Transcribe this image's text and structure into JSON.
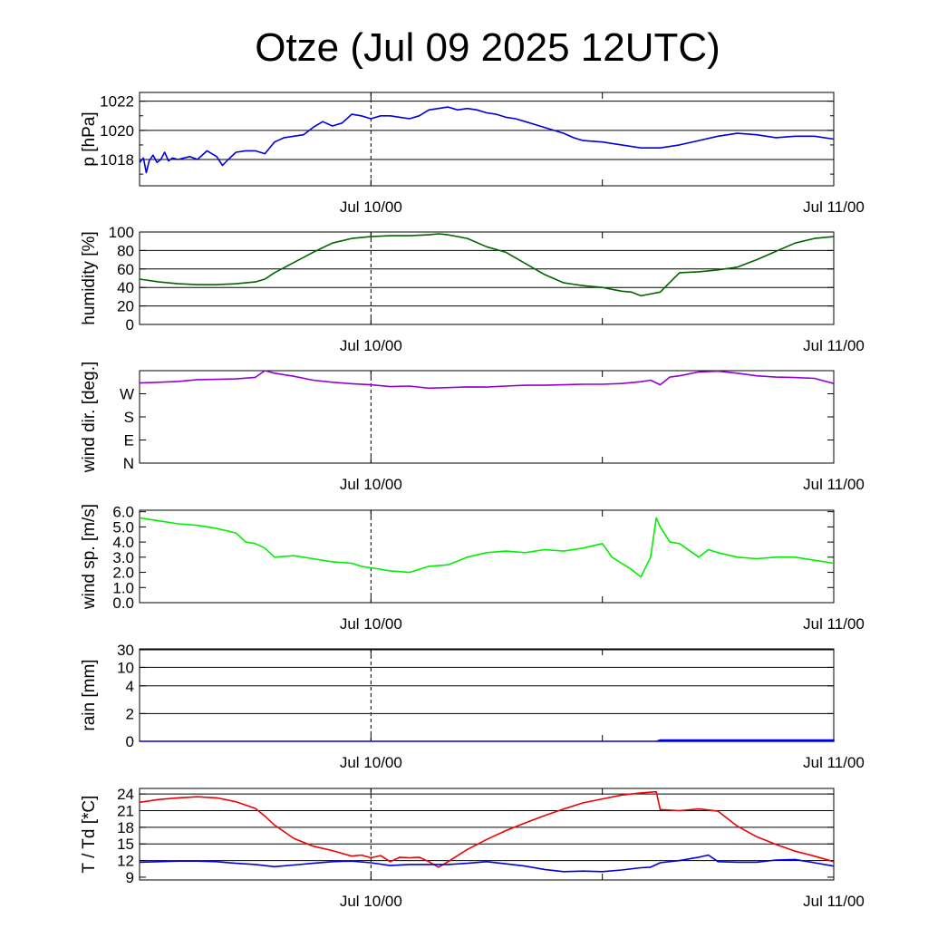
{
  "title": "Otze (Jul 09 2025 12UTC)",
  "x_tick_labels": [
    "Jul 10/00",
    "Jul 11/00"
  ],
  "chart_data": [
    {
      "id": "pressure",
      "type": "line",
      "ylabel": "p [hPa]",
      "ylim": [
        1016.2,
        1022.6
      ],
      "yticks": [
        1018,
        1020,
        1022
      ],
      "ytick_labels": [
        "1018",
        "1020",
        "1022"
      ],
      "grid": [
        1018,
        1020,
        1022
      ],
      "xlim": [
        0,
        36
      ],
      "series": [
        {
          "color": "#0000dd",
          "x": [
            0,
            0.2,
            0.35,
            0.5,
            0.7,
            0.9,
            1.1,
            1.3,
            1.5,
            1.7,
            2.0,
            2.3,
            2.6,
            3.0,
            3.5,
            4.0,
            4.3,
            4.6,
            5.0,
            5.5,
            6.0,
            6.5,
            7.0,
            7.5,
            8.0,
            8.5,
            9.0,
            9.5,
            10.0,
            10.5,
            11.0,
            11.5,
            12.0,
            12.5,
            13.0,
            13.5,
            14.0,
            14.5,
            15.0,
            15.5,
            16.0,
            16.5,
            17.0,
            17.5,
            18.0,
            18.5,
            19.0,
            19.5,
            20.0,
            21.0,
            22.0,
            22.5,
            23.0,
            24.0,
            25.0,
            26.0,
            27.0,
            28.0,
            29.0,
            30.0,
            31.0,
            32.0,
            33.0,
            34.0,
            35.0,
            36.0
          ],
          "y": [
            1017.8,
            1018.1,
            1017.1,
            1017.9,
            1018.3,
            1017.8,
            1018.0,
            1018.5,
            1017.9,
            1018.1,
            1018.0,
            1018.1,
            1018.2,
            1018.0,
            1018.6,
            1018.2,
            1017.6,
            1018.0,
            1018.5,
            1018.6,
            1018.6,
            1018.4,
            1019.2,
            1019.5,
            1019.6,
            1019.7,
            1020.2,
            1020.6,
            1020.3,
            1020.5,
            1021.1,
            1021.0,
            1020.8,
            1021.0,
            1021.0,
            1020.9,
            1020.8,
            1021.0,
            1021.4,
            1021.5,
            1021.6,
            1021.4,
            1021.5,
            1021.4,
            1021.2,
            1021.1,
            1020.9,
            1020.8,
            1020.6,
            1020.2,
            1019.8,
            1019.5,
            1019.3,
            1019.2,
            1019.0,
            1018.8,
            1018.8,
            1019.0,
            1019.3,
            1019.6,
            1019.8,
            1019.7,
            1019.5,
            1019.6,
            1019.6,
            1019.4
          ]
        }
      ]
    },
    {
      "id": "humidity",
      "type": "line",
      "ylabel": "humidity [%]",
      "ylim": [
        0,
        100
      ],
      "yticks": [
        0,
        20,
        40,
        60,
        80,
        100
      ],
      "ytick_labels": [
        "0",
        "20",
        "40",
        "60",
        "80",
        "100"
      ],
      "grid": [
        20,
        40,
        60,
        80
      ],
      "xlim": [
        0,
        36
      ],
      "series": [
        {
          "color": "#006400",
          "x": [
            0,
            1,
            2,
            3,
            4,
            5,
            6,
            6.5,
            7,
            8,
            9,
            10,
            11,
            11.5,
            12,
            13,
            14,
            15,
            15.5,
            16,
            17,
            18,
            19,
            20,
            21,
            22,
            23,
            24,
            25,
            25.5,
            26,
            27,
            28,
            29,
            30,
            31,
            32,
            33,
            34,
            35,
            36
          ],
          "y": [
            49,
            46,
            44,
            43,
            43,
            44,
            46,
            49,
            56,
            67,
            78,
            88,
            93,
            94,
            95,
            96,
            96,
            97,
            98,
            97,
            93,
            84,
            78,
            66,
            54,
            45,
            42,
            40,
            36,
            35,
            31,
            35,
            56,
            57,
            59,
            62,
            70,
            79,
            88,
            93,
            95
          ]
        }
      ]
    },
    {
      "id": "wind_direction",
      "type": "line",
      "ylabel": "wind dir. [deg.]",
      "ylim": [
        0,
        360
      ],
      "yticks": [
        0,
        90,
        180,
        270
      ],
      "ytick_labels": [
        "N",
        "E",
        "S",
        "W"
      ],
      "grid": [],
      "xlim": [
        0,
        36
      ],
      "series": [
        {
          "color": "#9400d3",
          "x": [
            0,
            1,
            2,
            3,
            4,
            5,
            6,
            6.5,
            7,
            8,
            9,
            10,
            11,
            12,
            13,
            14,
            15,
            16,
            17,
            18,
            19,
            20,
            21,
            22,
            23,
            24,
            25,
            26,
            26.5,
            27,
            27.5,
            28,
            29,
            30,
            31,
            32,
            33,
            34,
            35,
            36
          ],
          "y": [
            312,
            315,
            318,
            325,
            326,
            328,
            334,
            360,
            350,
            338,
            323,
            315,
            309,
            305,
            298,
            300,
            292,
            294,
            297,
            296,
            300,
            303,
            303,
            305,
            307,
            307,
            310,
            317,
            323,
            305,
            335,
            340,
            355,
            358,
            350,
            340,
            335,
            333,
            330,
            310
          ]
        }
      ]
    },
    {
      "id": "wind_speed",
      "type": "line",
      "ylabel": "wind sp. [m/s]",
      "ylim": [
        0,
        6.1
      ],
      "yticks": [
        0,
        1,
        2,
        3,
        4,
        5,
        6
      ],
      "ytick_labels": [
        "0.0",
        "1.0",
        "2.0",
        "3.0",
        "4.0",
        "5.0",
        "6.0"
      ],
      "grid": [],
      "xlim": [
        0,
        36
      ],
      "series": [
        {
          "color": "#00ee00",
          "x": [
            0,
            1,
            2,
            3,
            4,
            5,
            5.5,
            6,
            6.5,
            7,
            8,
            9,
            10,
            11,
            11.5,
            12,
            13,
            14,
            15,
            16,
            17,
            18,
            19,
            20,
            21,
            22,
            23,
            24,
            24.5,
            25,
            25.5,
            26,
            26.5,
            26.8,
            27,
            27.5,
            28,
            29,
            29.5,
            30,
            31,
            32,
            33,
            34,
            35,
            36
          ],
          "y": [
            5.6,
            5.4,
            5.2,
            5.1,
            4.9,
            4.6,
            4.0,
            3.9,
            3.6,
            3.0,
            3.1,
            2.9,
            2.7,
            2.6,
            2.4,
            2.3,
            2.1,
            2.0,
            2.4,
            2.5,
            3.0,
            3.3,
            3.4,
            3.3,
            3.5,
            3.4,
            3.6,
            3.9,
            3.0,
            2.6,
            2.2,
            1.7,
            3.0,
            5.6,
            5.0,
            4.0,
            3.9,
            3.0,
            3.5,
            3.3,
            3.0,
            2.9,
            3.0,
            3.0,
            2.8,
            2.6
          ]
        }
      ]
    },
    {
      "id": "rain",
      "type": "area",
      "ylabel": "rain [mm]",
      "ylim": [
        0,
        30
      ],
      "yticks": [
        0,
        2,
        4,
        10,
        30
      ],
      "ytick_labels": [
        "0",
        "2",
        "4",
        "10",
        "30"
      ],
      "grid": [
        2,
        4,
        10,
        30
      ],
      "scale": "nonlinear",
      "xlim": [
        0,
        36
      ],
      "series": [
        {
          "color": "#0000dd",
          "x": [
            0,
            26.8,
            27,
            36
          ],
          "y": [
            0,
            0,
            0.1,
            0.1
          ]
        }
      ]
    },
    {
      "id": "temperature",
      "type": "line",
      "ylabel": "T / Td [*C]",
      "ylim": [
        8.5,
        25
      ],
      "yticks": [
        9,
        12,
        15,
        18,
        21,
        24
      ],
      "ytick_labels": [
        "9",
        "12",
        "15",
        "18",
        "21",
        "24"
      ],
      "grid": [
        12,
        15,
        18,
        21,
        24
      ],
      "xlim": [
        0,
        36
      ],
      "series": [
        {
          "color": "#ee0000",
          "x": [
            0,
            1,
            2,
            3,
            4,
            5,
            6,
            6.5,
            7,
            8,
            9,
            10,
            11,
            11.5,
            12,
            12.5,
            13,
            13.5,
            14,
            14.5,
            15,
            15.5,
            16,
            17,
            18,
            19,
            20,
            21,
            22,
            23,
            24,
            25,
            26,
            26.8,
            27,
            28,
            29,
            30,
            31,
            32,
            33,
            34,
            35,
            36
          ],
          "y": [
            22.5,
            23.0,
            23.3,
            23.5,
            23.3,
            22.6,
            21.4,
            20.0,
            18.4,
            16.0,
            14.6,
            13.8,
            12.8,
            13.0,
            12.5,
            12.9,
            11.8,
            12.6,
            12.5,
            12.6,
            11.8,
            10.8,
            11.8,
            14.0,
            15.8,
            17.4,
            18.8,
            20.1,
            21.3,
            22.4,
            23.1,
            23.8,
            24.2,
            24.4,
            21.2,
            21.0,
            21.3,
            20.9,
            18.2,
            16.3,
            14.9,
            13.7,
            12.8,
            11.8
          ]
        },
        {
          "color": "#0000dd",
          "x": [
            0,
            1,
            2,
            3,
            4,
            5,
            6,
            7,
            8,
            9,
            10,
            11,
            12,
            13,
            14,
            15,
            16,
            17,
            18,
            19,
            20,
            21,
            22,
            23,
            24,
            25,
            26,
            26.5,
            27,
            28,
            29,
            29.5,
            30,
            31,
            32,
            33,
            34,
            35,
            36
          ],
          "y": [
            11.7,
            11.8,
            11.9,
            11.9,
            11.8,
            11.5,
            11.3,
            10.9,
            11.2,
            11.5,
            11.8,
            11.9,
            11.6,
            11.1,
            11.3,
            11.3,
            11.3,
            11.5,
            11.8,
            11.4,
            11.0,
            10.4,
            10.0,
            10.1,
            10.0,
            10.3,
            10.7,
            10.8,
            11.6,
            12.0,
            12.6,
            13.0,
            11.8,
            11.7,
            11.7,
            12.1,
            12.2,
            11.6,
            11.0
          ]
        }
      ]
    }
  ]
}
